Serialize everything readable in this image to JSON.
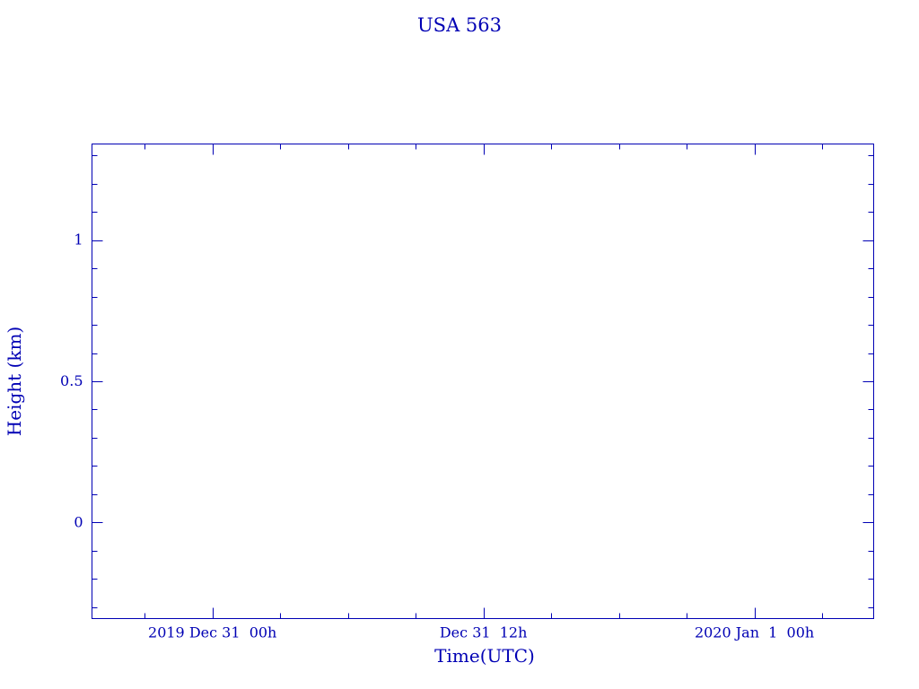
{
  "chart_data": {
    "type": "line",
    "title": "USA 563",
    "xlabel": "Time(UTC)",
    "ylabel": "Height (km)",
    "series": [],
    "ylim": [
      -0.34,
      1.34
    ],
    "xlim": [
      "2019-12-30T18:40",
      "2020-01-01T05:17"
    ],
    "y_major_ticks": [
      0,
      0.5,
      1
    ],
    "y_tick_labels": [
      "0",
      "0.5",
      "1"
    ],
    "y_minor_step": 0.1,
    "x_major_ticks": [
      "2019-12-31T00:00",
      "2019-12-31T12:00",
      "2020-01-01T00:00"
    ],
    "x_tick_labels": [
      "2019 Dec 31  00h",
      "Dec 31  12h",
      "2020 Jan  1  00h"
    ],
    "x_minor_step_hours": 3,
    "grid": false,
    "color": "#0000b4"
  }
}
